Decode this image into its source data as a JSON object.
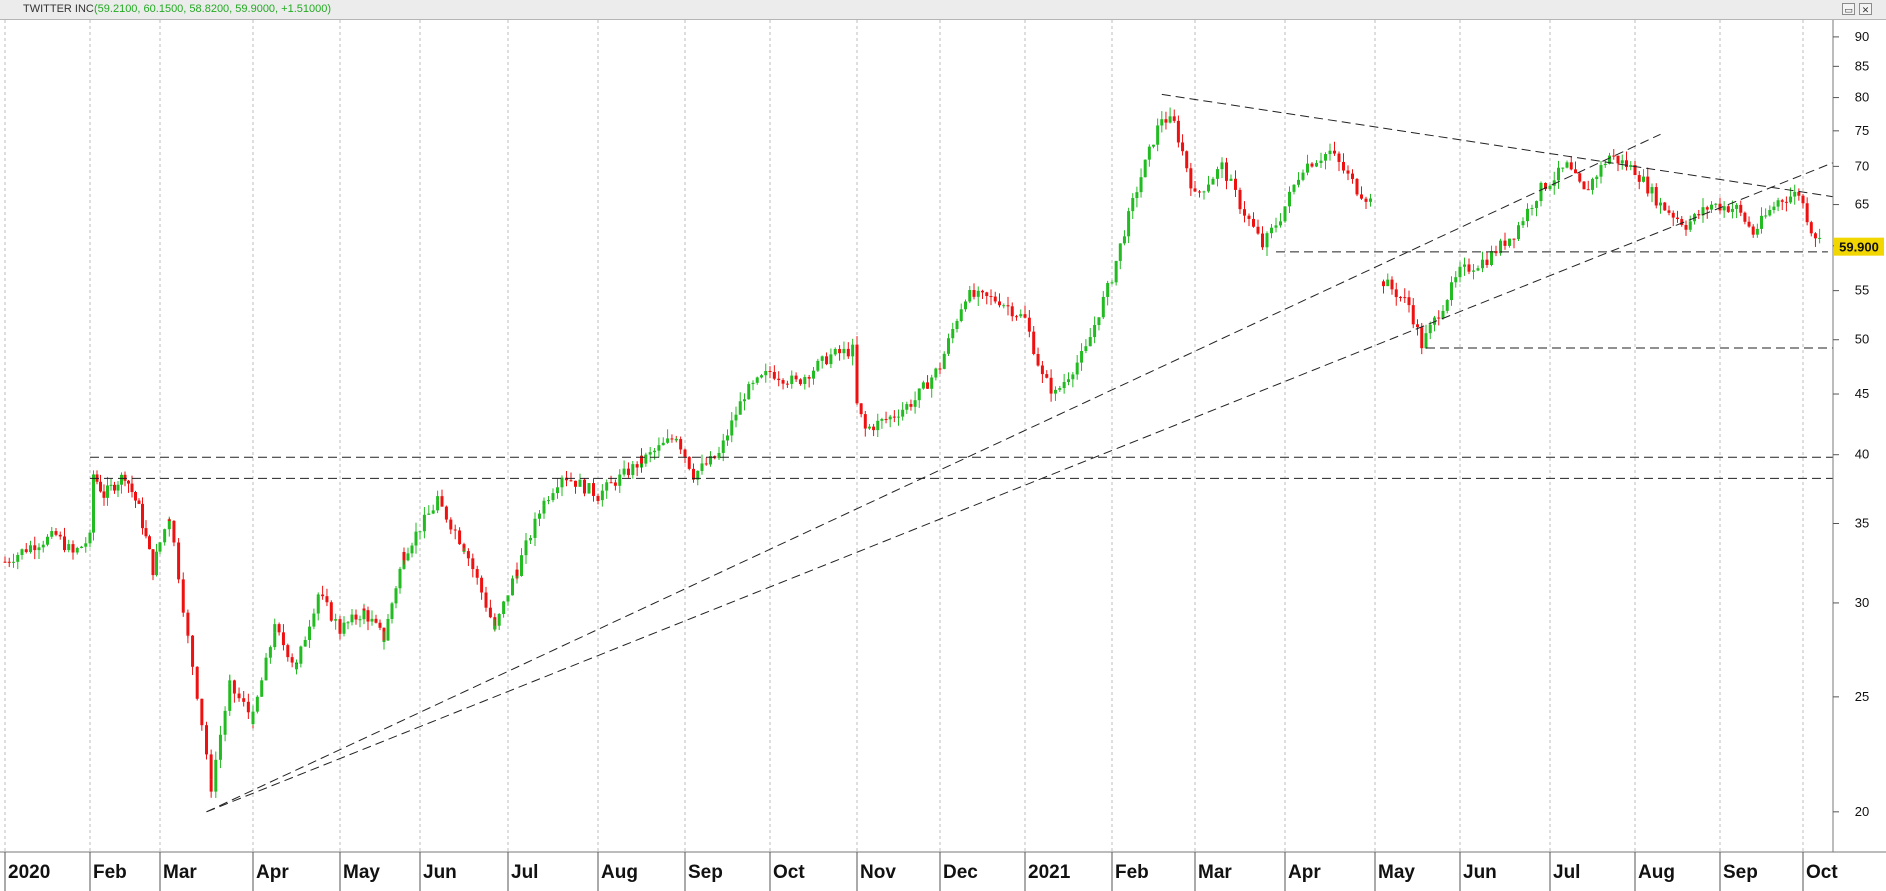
{
  "window": {
    "title": "TWITTER INC",
    "ohlc_readout": "(59.2100, 60.1500, 58.8200, 59.9000, +1.51000)",
    "buttons": [
      {
        "name": "restore-icon",
        "glyph": "▭"
      },
      {
        "name": "close-icon",
        "glyph": "✕"
      }
    ]
  },
  "colors": {
    "up": "#22bb22",
    "down": "#ee1111",
    "trendline": "#222222",
    "grid": "#bdbdbd",
    "price_tag": "#f2d600"
  },
  "chart_data": {
    "type": "candlestick",
    "scale": "log",
    "ylim": [
      18.5,
      93
    ],
    "y_ticks": [
      20,
      25,
      30,
      35,
      40,
      45,
      50,
      55,
      60,
      65,
      70,
      75,
      80,
      85,
      90
    ],
    "last_price": "59.900",
    "x_labels": [
      "2020",
      "Feb",
      "Mar",
      "Apr",
      "May",
      "Jun",
      "Jul",
      "Aug",
      "Sep",
      "Oct",
      "Nov",
      "Dec",
      "2021",
      "Feb",
      "Mar",
      "Apr",
      "May",
      "Jun",
      "Jul",
      "Aug",
      "Sep",
      "Oct"
    ],
    "x_tick_months": [
      0,
      1,
      2,
      3,
      4,
      5,
      6,
      7,
      8,
      9,
      10,
      11,
      12,
      13,
      14,
      15,
      16,
      17,
      18,
      19,
      20,
      21
    ],
    "price_path": [
      [
        0.0,
        32.5
      ],
      [
        0.3,
        33.5
      ],
      [
        0.6,
        34.2
      ],
      [
        0.8,
        33.0
      ],
      [
        1.0,
        34.0
      ],
      [
        1.05,
        38.5
      ],
      [
        1.2,
        37.0
      ],
      [
        1.5,
        38.5
      ],
      [
        1.7,
        36.0
      ],
      [
        1.9,
        32.0
      ],
      [
        2.1,
        35.5
      ],
      [
        2.3,
        28.0
      ],
      [
        2.55,
        21.0
      ],
      [
        2.75,
        25.5
      ],
      [
        3.0,
        24.0
      ],
      [
        3.25,
        28.5
      ],
      [
        3.5,
        26.5
      ],
      [
        3.75,
        30.5
      ],
      [
        4.0,
        28.5
      ],
      [
        4.3,
        29.5
      ],
      [
        4.55,
        28.0
      ],
      [
        4.8,
        33.0
      ],
      [
        5.2,
        36.5
      ],
      [
        5.5,
        33.5
      ],
      [
        5.85,
        28.5
      ],
      [
        6.1,
        32.0
      ],
      [
        6.4,
        36.5
      ],
      [
        6.6,
        38.5
      ],
      [
        7.0,
        37.0
      ],
      [
        7.5,
        39.5
      ],
      [
        7.9,
        41.5
      ],
      [
        8.1,
        38.5
      ],
      [
        8.4,
        40.0
      ],
      [
        8.7,
        45.0
      ],
      [
        9.0,
        47.0
      ],
      [
        9.3,
        46.0
      ],
      [
        9.7,
        48.5
      ],
      [
        9.95,
        49.0
      ],
      [
        10.0,
        44.0
      ],
      [
        10.1,
        42.0
      ],
      [
        10.4,
        43.0
      ],
      [
        10.7,
        44.5
      ],
      [
        11.0,
        47.5
      ],
      [
        11.3,
        54.5
      ],
      [
        11.7,
        54.0
      ],
      [
        12.0,
        52.0
      ],
      [
        12.2,
        46.5
      ],
      [
        12.35,
        45.0
      ],
      [
        12.7,
        49.0
      ],
      [
        13.0,
        56.5
      ],
      [
        13.3,
        67.0
      ],
      [
        13.6,
        77.0
      ],
      [
        13.75,
        76.0
      ],
      [
        14.0,
        66.0
      ],
      [
        14.3,
        70.0
      ],
      [
        14.5,
        65.0
      ],
      [
        14.75,
        60.0
      ],
      [
        14.95,
        63.5
      ],
      [
        15.2,
        70.0
      ],
      [
        15.5,
        72.0
      ],
      [
        15.8,
        67.0
      ],
      [
        16.0,
        65.0
      ]
    ],
    "price_path_2": [
      [
        16.1,
        56.0
      ],
      [
        16.4,
        53.5
      ],
      [
        16.55,
        49.5
      ],
      [
        16.8,
        53.5
      ],
      [
        17.0,
        57.0
      ],
      [
        17.3,
        58.5
      ],
      [
        17.6,
        61.5
      ],
      [
        17.9,
        67.0
      ],
      [
        18.2,
        70.0
      ],
      [
        18.4,
        66.5
      ],
      [
        18.7,
        71.5
      ],
      [
        19.0,
        69.5
      ],
      [
        19.3,
        65.0
      ],
      [
        19.6,
        62.5
      ],
      [
        19.9,
        65.0
      ],
      [
        20.2,
        64.5
      ],
      [
        20.4,
        61.5
      ],
      [
        20.7,
        65.5
      ],
      [
        20.95,
        66.5
      ],
      [
        21.1,
        62.0
      ],
      [
        21.25,
        59.9
      ]
    ],
    "trendlines": [
      {
        "type": "dashed",
        "points": [
          [
            2.5,
            20.0
          ],
          [
            19.3,
            74.5
          ]
        ]
      },
      {
        "type": "dashed",
        "points": [
          [
            2.5,
            20.0
          ],
          [
            22.0,
            70.5
          ]
        ]
      },
      {
        "type": "dashed",
        "points": [
          [
            13.6,
            80.5
          ],
          [
            22.0,
            66.0
          ]
        ]
      },
      {
        "type": "dashed",
        "points": [
          [
            1.0,
            39.8
          ],
          [
            22.0,
            39.8
          ]
        ]
      },
      {
        "type": "dashed",
        "points": [
          [
            1.0,
            38.2
          ],
          [
            22.0,
            38.2
          ]
        ]
      },
      {
        "type": "dashed",
        "points": [
          [
            14.9,
            59.3
          ],
          [
            21.3,
            59.3
          ]
        ]
      },
      {
        "type": "dashed",
        "points": [
          [
            16.6,
            49.2
          ],
          [
            22.0,
            49.2
          ]
        ]
      }
    ]
  }
}
